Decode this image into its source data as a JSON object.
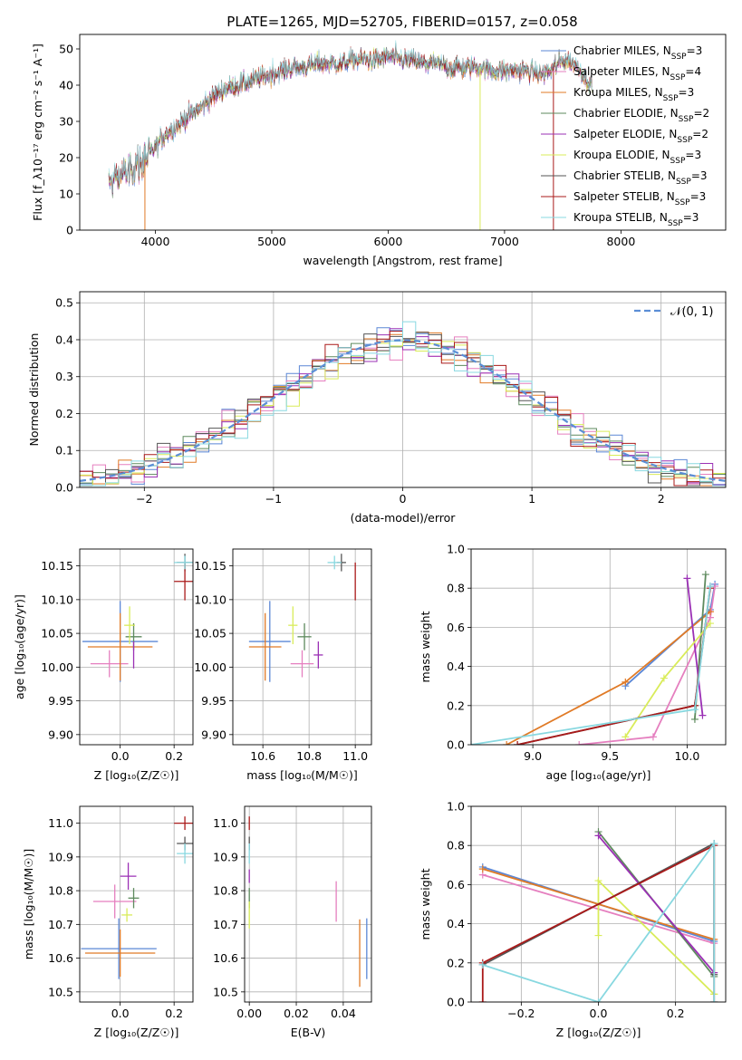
{
  "title": "PLATE=1265, MJD=52705, FIBERID=0157, z=0.058",
  "colors": {
    "Chabrier MILES": "#5b87d6",
    "Salpeter MILES": "#e57fbf",
    "Kroupa MILES": "#e07a26",
    "Chabrier ELODIE": "#5e8a5e",
    "Salpeter ELODIE": "#9b30b5",
    "Kroupa ELODIE": "#d9ec5a",
    "Chabrier STELIB": "#555555",
    "Salpeter STELIB": "#aa1a1a",
    "Kroupa STELIB": "#88d8e0",
    "normal": "#5b8ed6"
  },
  "chart_data": [
    {
      "id": "spectrum",
      "type": "line",
      "xlabel": "wavelength [Angstrom, rest frame]",
      "ylabel": "Flux [f_λ10⁻¹⁷ erg cm⁻² s⁻¹ A⁻¹]",
      "xlim": [
        3350,
        8900
      ],
      "ylim": [
        0,
        54
      ],
      "xticks": [
        4000,
        5000,
        6000,
        7000,
        8000
      ],
      "yticks": [
        0,
        10,
        20,
        30,
        40,
        50
      ],
      "envelope": {
        "x": [
          3600,
          3700,
          3800,
          3900,
          4000,
          4100,
          4200,
          4300,
          4400,
          4500,
          4600,
          4700,
          4800,
          4900,
          5000,
          5100,
          5200,
          5300,
          5400,
          5500,
          5600,
          5700,
          5800,
          5900,
          6000,
          6100,
          6200,
          6300,
          6400,
          6500,
          6600,
          6700,
          6800,
          6900,
          7000,
          7100,
          7200,
          7300,
          7400,
          7500,
          7600,
          7700,
          7800
        ],
        "y": [
          13,
          15,
          17,
          19,
          23,
          27,
          29,
          32,
          34,
          37,
          39,
          40,
          41,
          42,
          43,
          44,
          45,
          45,
          46,
          46,
          46,
          47,
          47,
          47,
          48,
          47,
          47,
          46,
          46,
          45,
          45,
          45,
          45,
          44,
          44,
          44,
          44,
          43,
          44,
          47,
          46,
          42,
          38
        ]
      },
      "legend": [
        {
          "name": "Chabrier MILES",
          "nssp": "3"
        },
        {
          "name": "Salpeter MILES",
          "nssp": "4"
        },
        {
          "name": "Kroupa MILES",
          "nssp": "3"
        },
        {
          "name": "Chabrier ELODIE",
          "nssp": "2"
        },
        {
          "name": "Salpeter ELODIE",
          "nssp": "2"
        },
        {
          "name": "Kroupa ELODIE",
          "nssp": "3"
        },
        {
          "name": "Chabrier STELIB",
          "nssp": "3"
        },
        {
          "name": "Salpeter STELIB",
          "nssp": "3"
        },
        {
          "name": "Kroupa STELIB",
          "nssp": "3"
        }
      ],
      "legend_loc": "upper right"
    },
    {
      "id": "residuals",
      "type": "line",
      "xlabel": "(data-model)/error",
      "ylabel": "Normed distribution",
      "xlim": [
        -2.5,
        2.5
      ],
      "ylim": [
        0,
        0.53
      ],
      "xticks": [
        -2,
        -1,
        0,
        1,
        2
      ],
      "yticks": [
        0.0,
        0.1,
        0.2,
        0.3,
        0.4,
        0.5
      ],
      "grid": true,
      "normal_label": "𝒩(0, 1)"
    },
    {
      "id": "age_vs_Z",
      "type": "scatter",
      "xlabel": "Z [log₁₀(Z/Z☉)]",
      "ylabel": "age  [log₁₀(age/yr)]",
      "xlim": [
        -0.15,
        0.27
      ],
      "ylim": [
        9.885,
        10.175
      ],
      "xticks": [
        0.0,
        0.2
      ],
      "yticks": [
        9.9,
        9.95,
        10.0,
        10.05,
        10.1,
        10.15
      ],
      "grid": true,
      "points": [
        {
          "s": "Chabrier MILES",
          "x": 0.0,
          "xerr": 0.14,
          "y": 10.038,
          "yerr": 0.06
        },
        {
          "s": "Salpeter MILES",
          "x": -0.04,
          "xerr": 0.07,
          "y": 10.005,
          "yerr": 0.02
        },
        {
          "s": "Kroupa MILES",
          "x": 0.0,
          "xerr": 0.12,
          "y": 10.03,
          "yerr": 0.05
        },
        {
          "s": "Chabrier ELODIE",
          "x": 0.05,
          "xerr": 0.03,
          "y": 10.045,
          "yerr": 0.02
        },
        {
          "s": "Salpeter ELODIE",
          "x": 0.05,
          "xerr": 0.0,
          "y": 10.018,
          "yerr": 0.02
        },
        {
          "s": "Kroupa ELODIE",
          "x": 0.035,
          "xerr": 0.02,
          "y": 10.062,
          "yerr": 0.028
        },
        {
          "s": "Chabrier STELIB",
          "x": 0.24,
          "xerr": 0.03,
          "y": 10.155,
          "yerr": 0.013
        },
        {
          "s": "Salpeter STELIB",
          "x": 0.24,
          "xerr": 0.04,
          "y": 10.127,
          "yerr": 0.028
        },
        {
          "s": "Kroupa STELIB",
          "x": 0.24,
          "xerr": 0.04,
          "y": 10.155,
          "yerr": 0.01
        }
      ]
    },
    {
      "id": "age_vs_mass",
      "type": "scatter",
      "xlabel": "mass [log₁₀(M/M☉)]",
      "ylabel": "",
      "xlim": [
        10.47,
        11.07
      ],
      "ylim": [
        9.885,
        10.175
      ],
      "xticks": [
        10.6,
        10.8,
        11.0
      ],
      "yticks": [
        9.9,
        9.95,
        10.0,
        10.05,
        10.1,
        10.15
      ],
      "grid": true,
      "points": [
        {
          "s": "Chabrier MILES",
          "x": 10.63,
          "xerr": 0.09,
          "y": 10.038,
          "yerr": 0.06
        },
        {
          "s": "Salpeter MILES",
          "x": 10.77,
          "xerr": 0.05,
          "y": 10.005,
          "yerr": 0.02
        },
        {
          "s": "Kroupa MILES",
          "x": 10.61,
          "xerr": 0.07,
          "y": 10.03,
          "yerr": 0.05
        },
        {
          "s": "Chabrier ELODIE",
          "x": 10.78,
          "xerr": 0.03,
          "y": 10.045,
          "yerr": 0.02
        },
        {
          "s": "Salpeter ELODIE",
          "x": 10.84,
          "xerr": 0.02,
          "y": 10.018,
          "yerr": 0.02
        },
        {
          "s": "Kroupa ELODIE",
          "x": 10.73,
          "xerr": 0.02,
          "y": 10.062,
          "yerr": 0.028
        },
        {
          "s": "Chabrier STELIB",
          "x": 10.94,
          "xerr": 0.02,
          "y": 10.155,
          "yerr": 0.013
        },
        {
          "s": "Salpeter STELIB",
          "x": 11.0,
          "xerr": 0.0,
          "y": 10.127,
          "yerr": 0.028
        },
        {
          "s": "Kroupa STELIB",
          "x": 10.91,
          "xerr": 0.03,
          "y": 10.155,
          "yerr": 0.01
        }
      ]
    },
    {
      "id": "weight_vs_age",
      "type": "line",
      "xlabel": "age  [log₁₀(age/yr)]",
      "ylabel": "mass weight",
      "xlim": [
        8.6,
        10.25
      ],
      "ylim": [
        0,
        1.0
      ],
      "xticks": [
        9.0,
        9.5,
        10.0
      ],
      "yticks": [
        0.0,
        0.2,
        0.4,
        0.6,
        0.8,
        1.0
      ],
      "grid": true,
      "lines": [
        {
          "s": "Chabrier MILES",
          "x": [
            9.6,
            10.15,
            10.18
          ],
          "y": [
            0.3,
            0.69,
            0.82
          ]
        },
        {
          "s": "Salpeter MILES",
          "x": [
            9.3,
            9.78,
            10.15,
            10.18
          ],
          "y": [
            0.0,
            0.04,
            0.65,
            0.81
          ]
        },
        {
          "s": "Kroupa MILES",
          "x": [
            8.83,
            9.6,
            10.15
          ],
          "y": [
            0.0,
            0.32,
            0.68
          ]
        },
        {
          "s": "Chabrier ELODIE",
          "x": [
            10.05,
            10.12
          ],
          "y": [
            0.13,
            0.87
          ]
        },
        {
          "s": "Salpeter ELODIE",
          "x": [
            10.0,
            10.1
          ],
          "y": [
            0.85,
            0.15
          ]
        },
        {
          "s": "Kroupa ELODIE",
          "x": [
            9.6,
            9.85,
            10.15
          ],
          "y": [
            0.04,
            0.34,
            0.62
          ]
        },
        {
          "s": "Chabrier STELIB",
          "x": [
            8.9,
            10.05,
            10.15
          ],
          "y": [
            0.0,
            0.2,
            0.81
          ]
        },
        {
          "s": "Salpeter STELIB",
          "x": [
            8.9,
            10.05,
            10.15
          ],
          "y": [
            0.0,
            0.2,
            0.8
          ]
        },
        {
          "s": "Kroupa STELIB",
          "x": [
            8.6,
            10.05,
            10.15
          ],
          "y": [
            0.0,
            0.18,
            0.81
          ]
        }
      ]
    },
    {
      "id": "mass_vs_Z",
      "type": "scatter",
      "xlabel": "Z [log₁₀(Z/Z☉)]",
      "ylabel": "mass [log₁₀(M/M☉)]",
      "xlim": [
        -0.15,
        0.27
      ],
      "ylim": [
        10.47,
        11.05
      ],
      "xticks": [
        0.0,
        0.2
      ],
      "yticks": [
        10.5,
        10.6,
        10.7,
        10.8,
        10.9,
        11.0
      ],
      "grid": true,
      "points": [
        {
          "s": "Chabrier MILES",
          "x": -0.005,
          "xerr": 0.14,
          "y": 10.628,
          "yerr": 0.09
        },
        {
          "s": "Salpeter MILES",
          "x": -0.02,
          "xerr": 0.08,
          "y": 10.768,
          "yerr": 0.05
        },
        {
          "s": "Kroupa MILES",
          "x": 0.0,
          "xerr": 0.13,
          "y": 10.615,
          "yerr": 0.07
        },
        {
          "s": "Chabrier ELODIE",
          "x": 0.05,
          "xerr": 0.02,
          "y": 10.778,
          "yerr": 0.03
        },
        {
          "s": "Salpeter ELODIE",
          "x": 0.03,
          "xerr": 0.03,
          "y": 10.843,
          "yerr": 0.04
        },
        {
          "s": "Kroupa ELODIE",
          "x": 0.025,
          "xerr": 0.02,
          "y": 10.728,
          "yerr": 0.02
        },
        {
          "s": "Chabrier STELIB",
          "x": 0.24,
          "xerr": 0.03,
          "y": 10.94,
          "yerr": 0.02
        },
        {
          "s": "Salpeter STELIB",
          "x": 0.24,
          "xerr": 0.04,
          "y": 11.0,
          "yerr": 0.02
        },
        {
          "s": "Kroupa STELIB",
          "x": 0.24,
          "xerr": 0.03,
          "y": 10.91,
          "yerr": 0.03
        }
      ]
    },
    {
      "id": "mass_vs_ebv",
      "type": "scatter",
      "xlabel": "E(B-V)",
      "ylabel": "",
      "xlim": [
        -0.002,
        0.052
      ],
      "ylim": [
        10.47,
        11.05
      ],
      "xticks": [
        0.0,
        0.02,
        0.04
      ],
      "yticks": [
        10.5,
        10.6,
        10.7,
        10.8,
        10.9,
        11.0
      ],
      "grid": true,
      "points": [
        {
          "s": "Chabrier MILES",
          "x": 0.05,
          "xerr": 0.0,
          "y": 10.628,
          "yerr": 0.09
        },
        {
          "s": "Salpeter MILES",
          "x": 0.037,
          "xerr": 0.0,
          "y": 10.768,
          "yerr": 0.06
        },
        {
          "s": "Kroupa MILES",
          "x": 0.047,
          "xerr": 0.0,
          "y": 10.615,
          "yerr": 0.1
        },
        {
          "s": "Chabrier ELODIE",
          "x": 0.0,
          "xerr": 0.0,
          "y": 10.778,
          "yerr": 0.03
        },
        {
          "s": "Salpeter ELODIE",
          "x": 0.0,
          "xerr": 0.0,
          "y": 10.843,
          "yerr": 0.02
        },
        {
          "s": "Kroupa ELODIE",
          "x": 0.0,
          "xerr": 0.0,
          "y": 10.728,
          "yerr": 0.04
        },
        {
          "s": "Chabrier STELIB",
          "x": 0.0,
          "xerr": 0.0,
          "y": 10.94,
          "yerr": 0.02
        },
        {
          "s": "Salpeter STELIB",
          "x": 0.0,
          "xerr": 0.0,
          "y": 11.0,
          "yerr": 0.02
        },
        {
          "s": "Kroupa STELIB",
          "x": 0.0,
          "xerr": 0.0,
          "y": 10.91,
          "yerr": 0.03
        }
      ]
    },
    {
      "id": "weight_vs_Z",
      "type": "line",
      "xlabel": "Z [log₁₀(Z/Z☉)]",
      "ylabel": "mass weight",
      "xlim": [
        -0.33,
        0.33
      ],
      "ylim": [
        0,
        1.0
      ],
      "xticks": [
        -0.2,
        0.0,
        0.2
      ],
      "yticks": [
        0.0,
        0.2,
        0.4,
        0.6,
        0.8,
        1.0
      ],
      "grid": true,
      "lines": [
        {
          "s": "Chabrier MILES",
          "x": [
            -0.3,
            0.3
          ],
          "y": [
            0.69,
            0.31
          ]
        },
        {
          "s": "Salpeter MILES",
          "x": [
            -0.3,
            0.3
          ],
          "y": [
            0.65,
            0.3
          ]
        },
        {
          "s": "Kroupa MILES",
          "x": [
            -0.3,
            0.3
          ],
          "y": [
            0.68,
            0.32
          ]
        },
        {
          "s": "Chabrier ELODIE",
          "x": [
            0.0,
            0.3
          ],
          "y": [
            0.87,
            0.13
          ]
        },
        {
          "s": "Salpeter ELODIE",
          "x": [
            0.0,
            0.3
          ],
          "y": [
            0.85,
            0.15
          ]
        },
        {
          "s": "Kroupa ELODIE",
          "x": [
            0.0,
            0.0,
            0.3,
            0.3
          ],
          "y": [
            0.34,
            0.62,
            0.04,
            0.04
          ]
        },
        {
          "s": "Chabrier STELIB",
          "x": [
            -0.3,
            0.3,
            0.3
          ],
          "y": [
            0.19,
            0.81,
            0.14
          ]
        },
        {
          "s": "Salpeter STELIB",
          "x": [
            -0.3,
            -0.3,
            0.3,
            0.3
          ],
          "y": [
            0.0,
            0.2,
            0.8,
            0.0
          ]
        },
        {
          "s": "Kroupa STELIB",
          "x": [
            -0.3,
            0.0,
            0.3,
            0.3
          ],
          "y": [
            0.19,
            0.0,
            0.81,
            0.0
          ]
        }
      ]
    }
  ]
}
